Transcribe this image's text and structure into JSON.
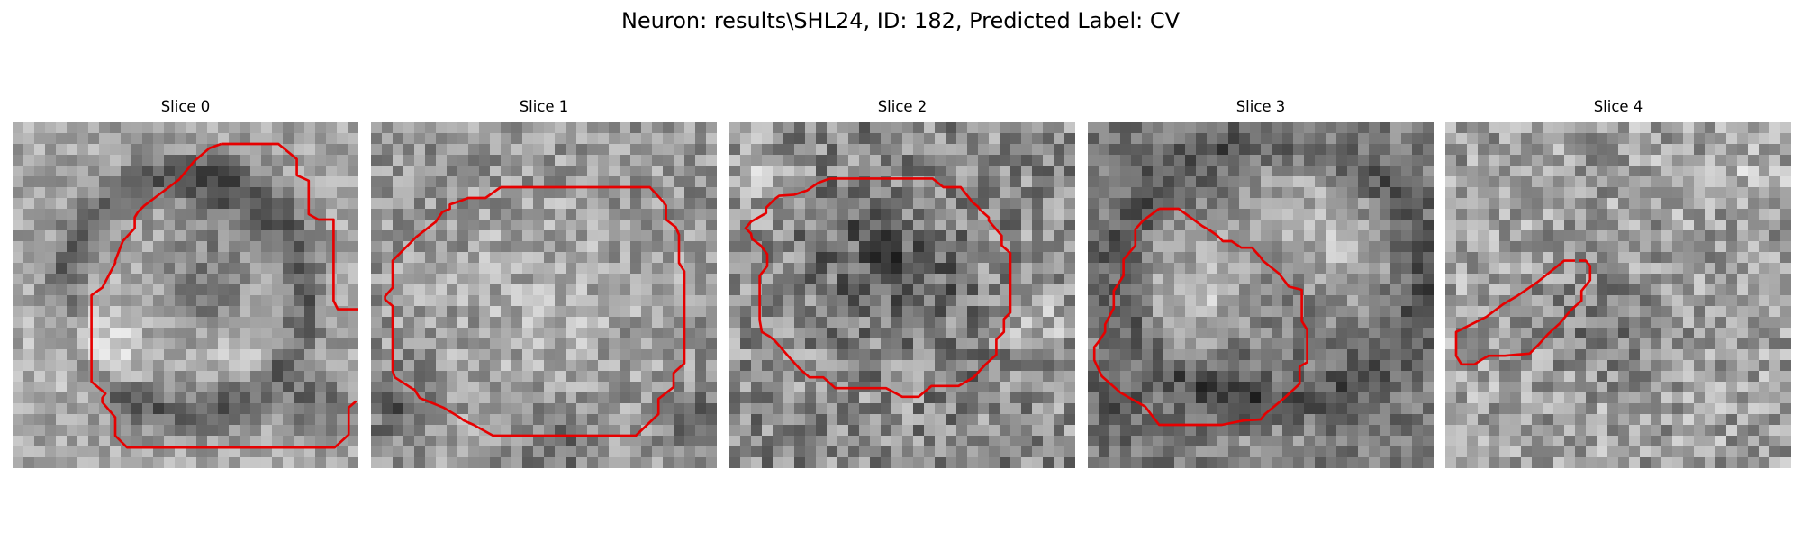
{
  "title": "Neuron: results\\SHL24, ID: 182, Predicted Label: CV",
  "contour_color": "#e60000",
  "panels": [
    {
      "title": "Slice 0"
    },
    {
      "title": "Slice 1"
    },
    {
      "title": "Slice 2"
    },
    {
      "title": "Slice 3"
    },
    {
      "title": "Slice 4"
    }
  ]
}
